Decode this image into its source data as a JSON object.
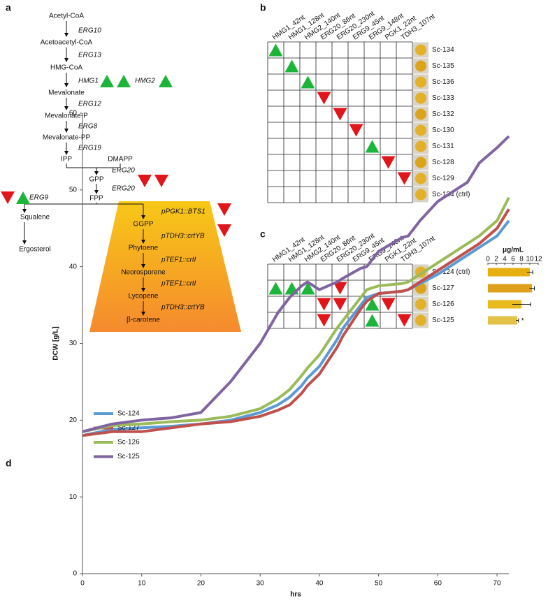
{
  "panel_labels": [
    "a",
    "b",
    "c",
    "d"
  ],
  "pathway": {
    "metabolites": [
      "Acetyl-CoA",
      "Acetoacetyl-CoA",
      "HMG-CoA",
      "Mevalonate",
      "Mevalonate-P",
      "Mevalonate-PP",
      "IPP",
      "DMAPP",
      "GPP",
      "FPP",
      "Squalene",
      "Ergosterol",
      "GGPP",
      "Phytoene",
      "Neorosporene",
      "Lycopene",
      "β-carotene"
    ],
    "genes": [
      "ERG10",
      "ERG13",
      "HMG1",
      "HMG2",
      "ERG12",
      "ERG8",
      "ERG19",
      "ERG20",
      "ERG20",
      "ERG9",
      "pPGK1::BTS1",
      "pTDH3::crtYB",
      "pTEF1::crtI",
      "pTEF1::crtI",
      "pTDH3::crtYB"
    ]
  },
  "strain_table_b": {
    "columns": [
      "HMG1_42nt",
      "HMG1_128nt",
      "HMG2_140nt",
      "ERG20_86nt",
      "ERG20_230nt",
      "ERG9_45nt",
      "ERG9_148nt",
      "PGK1_22nt",
      "TDH3_107nt"
    ],
    "rows": [
      "Sc-134",
      "Sc-135",
      "Sc-136",
      "Sc-133",
      "Sc-132",
      "Sc-130",
      "Sc-131",
      "Sc-128",
      "Sc-129",
      "Sc-124 (ctrl)"
    ]
  },
  "strain_table_c": {
    "columns": [
      "HMG1_42nt",
      "HMG1_128nt",
      "HMG2_140nt",
      "ERG20_86nt",
      "ERG20_230nt",
      "ERG9_45nt",
      "ERG9_148nt",
      "PGK1_22nt",
      "TDH3_107nt"
    ]
  },
  "chart_data": [
    {
      "type": "bar",
      "orientation": "horizontal",
      "title": "μg/mL",
      "categories": [
        "Sc-124 (ctrl)",
        "Sc-127",
        "Sc-126",
        "Sc-125"
      ],
      "values": [
        10,
        10.5,
        8,
        7
      ],
      "errors": [
        0.7,
        0.6,
        2.2,
        0.3
      ],
      "colors": [
        "#e6b012",
        "#dfa01c",
        "#e9b920",
        "#e2c348"
      ],
      "annotation": "*",
      "xlim": [
        0,
        12
      ],
      "xticks": [
        0,
        2,
        4,
        6,
        8,
        10,
        12
      ]
    },
    {
      "type": "line",
      "x": [
        0,
        5,
        10,
        15,
        20,
        25,
        30,
        33,
        35,
        37,
        38,
        40,
        43,
        44,
        47,
        48,
        50,
        54,
        55,
        57,
        60,
        64,
        65,
        67,
        70,
        72
      ],
      "xlabel": "hrs",
      "ylabel": "DCW [g/L]",
      "xlim": [
        0,
        72
      ],
      "xticks": [
        0,
        10,
        20,
        30,
        40,
        50,
        60,
        70
      ],
      "ylim": [
        0,
        60
      ],
      "yticks": [
        0,
        10,
        20,
        30,
        40,
        50,
        60
      ],
      "series": [
        {
          "name": "Sc-124",
          "color": "#5b9bd5",
          "values": [
            18,
            18.8,
            19,
            19.2,
            19.5,
            20,
            21,
            22,
            23,
            24.5,
            25.5,
            27,
            30.5,
            32,
            35,
            36,
            36.5,
            36.8,
            37,
            37.8,
            39,
            41,
            41.5,
            42.5,
            44,
            46
          ]
        },
        {
          "name": "Sc-127",
          "color": "#c0504d",
          "values": [
            18,
            18.5,
            18.5,
            19,
            19.5,
            19.8,
            20.5,
            21.3,
            22,
            23.5,
            24.5,
            26,
            29.5,
            31,
            34.5,
            35.5,
            36.5,
            36.8,
            37,
            38,
            39.5,
            41.5,
            42,
            43,
            45,
            47.5
          ]
        },
        {
          "name": "Sc-126",
          "color": "#9bbb59",
          "values": [
            18.5,
            19.3,
            19.5,
            19.8,
            20,
            20.5,
            21.5,
            22.8,
            24,
            25.8,
            26.8,
            28.5,
            32,
            33,
            36,
            37,
            37.5,
            37.8,
            38,
            39,
            40.5,
            42.5,
            43,
            44,
            46,
            49
          ]
        },
        {
          "name": "Sc-125",
          "color": "#8064a2",
          "values": [
            18.5,
            19.5,
            20,
            20.3,
            21,
            25,
            30,
            34,
            36,
            37.5,
            38,
            37,
            38,
            38.5,
            39.8,
            40,
            42,
            43.8,
            44,
            46,
            48.5,
            50.5,
            51,
            53.5,
            55.5,
            57
          ]
        }
      ]
    }
  ]
}
